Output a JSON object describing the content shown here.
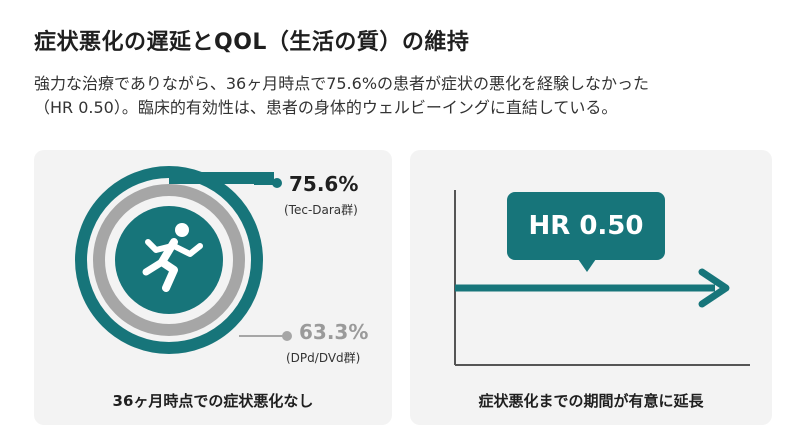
{
  "header": {
    "title": "症状悪化の遅延とQOL（生活の質）の維持",
    "subtitle_line1": "強力な治療でありながら、36ヶ月時点で75.6%の患者が症状の悪化を経験しなかった",
    "subtitle_line2": "（HR 0.50）。臨床的有効性は、患者の身体的ウェルビーイングに直結している。"
  },
  "left_panel": {
    "main_value": "75.6%",
    "main_label": "(Tec-Dara群)",
    "ref_value": "63.3%",
    "ref_label": "(DPd/DVd群)",
    "caption": "36ヶ月時点での症状悪化なし",
    "icon": "running-person-icon"
  },
  "right_panel": {
    "hr_label": "HR 0.50",
    "caption": "症状悪化までの期間が有意に延長"
  },
  "colors": {
    "teal": "#17757a",
    "gray": "#a6a6a6",
    "card_bg": "#f3f3f3"
  }
}
